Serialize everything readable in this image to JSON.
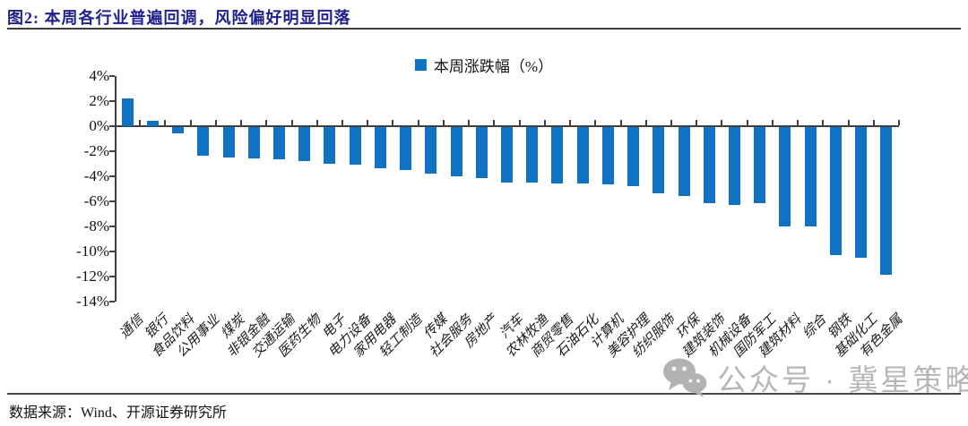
{
  "header": {
    "title": "图2:  本周各行业普遍回调，风险偏好明显回落"
  },
  "legend": {
    "label": "本周涨跌幅（%）",
    "marker_color": "#0f72c2"
  },
  "chart_data": {
    "type": "bar",
    "title": "本周涨跌幅（%）",
    "xlabel": "",
    "ylabel": "",
    "categories": [
      "通信",
      "银行",
      "食品饮料",
      "公用事业",
      "煤炭",
      "非银金融",
      "交通运输",
      "医药生物",
      "电子",
      "电力设备",
      "家用电器",
      "轻工制造",
      "传媒",
      "社会服务",
      "房地产",
      "汽车",
      "农林牧渔",
      "商贸零售",
      "石油石化",
      "计算机",
      "美容护理",
      "纺织服饰",
      "环保",
      "建筑装饰",
      "机械设备",
      "国防军工",
      "建筑材料",
      "综合",
      "钢铁",
      "基础化工",
      "有色金属"
    ],
    "values": [
      2.2,
      0.4,
      -0.5,
      -2.3,
      -2.4,
      -2.5,
      -2.6,
      -2.7,
      -2.9,
      -3.0,
      -3.3,
      -3.4,
      -3.7,
      -3.9,
      -4.1,
      -4.4,
      -4.4,
      -4.5,
      -4.5,
      -4.6,
      -4.7,
      -5.3,
      -5.5,
      -6.1,
      -6.2,
      -6.1,
      -7.9,
      -7.9,
      -10.2,
      -10.4,
      -11.8
    ],
    "ylim": [
      -14,
      4
    ],
    "yticks": [
      "4%",
      "2%",
      "0%",
      "-2%",
      "-4%",
      "-6%",
      "-8%",
      "-10%",
      "-12%",
      "-14%"
    ],
    "grid": false,
    "legend_position": "top-center",
    "bar_color": "#0f72c2",
    "axis_color": "#3f3f3f"
  },
  "watermark": {
    "text": "公众号 · 冀星策略",
    "icon": "wechat-icon"
  },
  "footer": {
    "source": "数据来源：Wind、开源证券研究所"
  }
}
